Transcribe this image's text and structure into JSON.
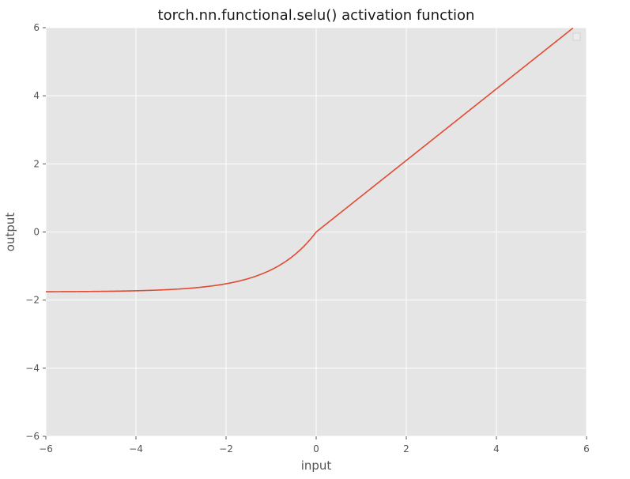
{
  "chart_data": {
    "type": "line",
    "title": "torch.nn.functional.selu() activation function",
    "xlabel": "input",
    "ylabel": "output",
    "xlim": [
      -6,
      6
    ],
    "ylim": [
      -6,
      6
    ],
    "xticks": [
      -6,
      -4,
      -2,
      0,
      2,
      4,
      6
    ],
    "yticks": [
      -6,
      -4,
      -2,
      0,
      2,
      4,
      6
    ],
    "xtick_labels": [
      "−6",
      "−4",
      "−2",
      "0",
      "2",
      "4",
      "6"
    ],
    "ytick_labels": [
      "−6",
      "−4",
      "−2",
      "0",
      "2",
      "4",
      "6"
    ],
    "grid": true,
    "legend": "top-right (empty)",
    "series": [
      {
        "name": "selu",
        "function": "selu",
        "scale": 1.0507,
        "alpha": 1.67326,
        "x_range": [
          -6,
          5.7
        ],
        "color": "#e24a33"
      }
    ],
    "colors": {
      "plot_background": "#e5e5e5",
      "grid": "#ffffff",
      "line": "#e24a33",
      "text": "#555555"
    }
  }
}
